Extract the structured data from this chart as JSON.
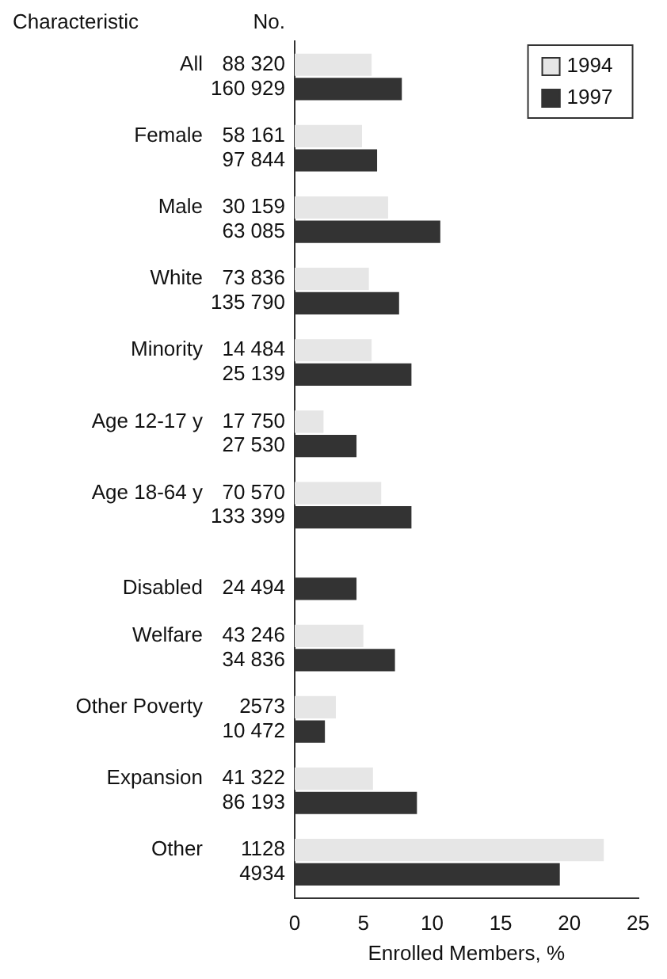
{
  "chart_data": {
    "type": "bar",
    "orientation": "horizontal",
    "ylabel": "Characteristic",
    "xlabel": "Enrolled Members, %",
    "annotations": [
      "No.",
      "88 320",
      "160 929",
      "58 161",
      "97 844",
      "30 159",
      "63 085",
      "73 836",
      "135 790",
      "14 484",
      "25 139",
      "17 750",
      "27 530",
      "70 570",
      "133 399",
      "24 494",
      "43 246",
      "34 836",
      "2573",
      "10 472",
      "41 322",
      "86 193",
      "1128",
      "4934"
    ],
    "categories": [
      "All",
      "Female",
      "Male",
      "White",
      "Minority",
      "Age 12-17 y",
      "Age 18-64 y",
      "Disabled",
      "Welfare",
      "Other Poverty",
      "Expansion",
      "Other"
    ],
    "series": [
      {
        "name": "1994",
        "color": "#e6e6e6",
        "values": [
          5.6,
          4.9,
          6.8,
          5.4,
          5.6,
          2.1,
          6.3,
          null,
          5.0,
          3.0,
          5.7,
          22.5
        ]
      },
      {
        "name": "1997",
        "color": "#333333",
        "values": [
          7.8,
          6.0,
          10.6,
          7.6,
          8.5,
          4.5,
          8.5,
          4.5,
          7.3,
          2.2,
          8.9,
          19.3
        ]
      }
    ],
    "xlim": [
      0,
      25
    ],
    "xticks": [
      0,
      5,
      10,
      15,
      20,
      25
    ],
    "grid": false,
    "legend": "top right"
  }
}
